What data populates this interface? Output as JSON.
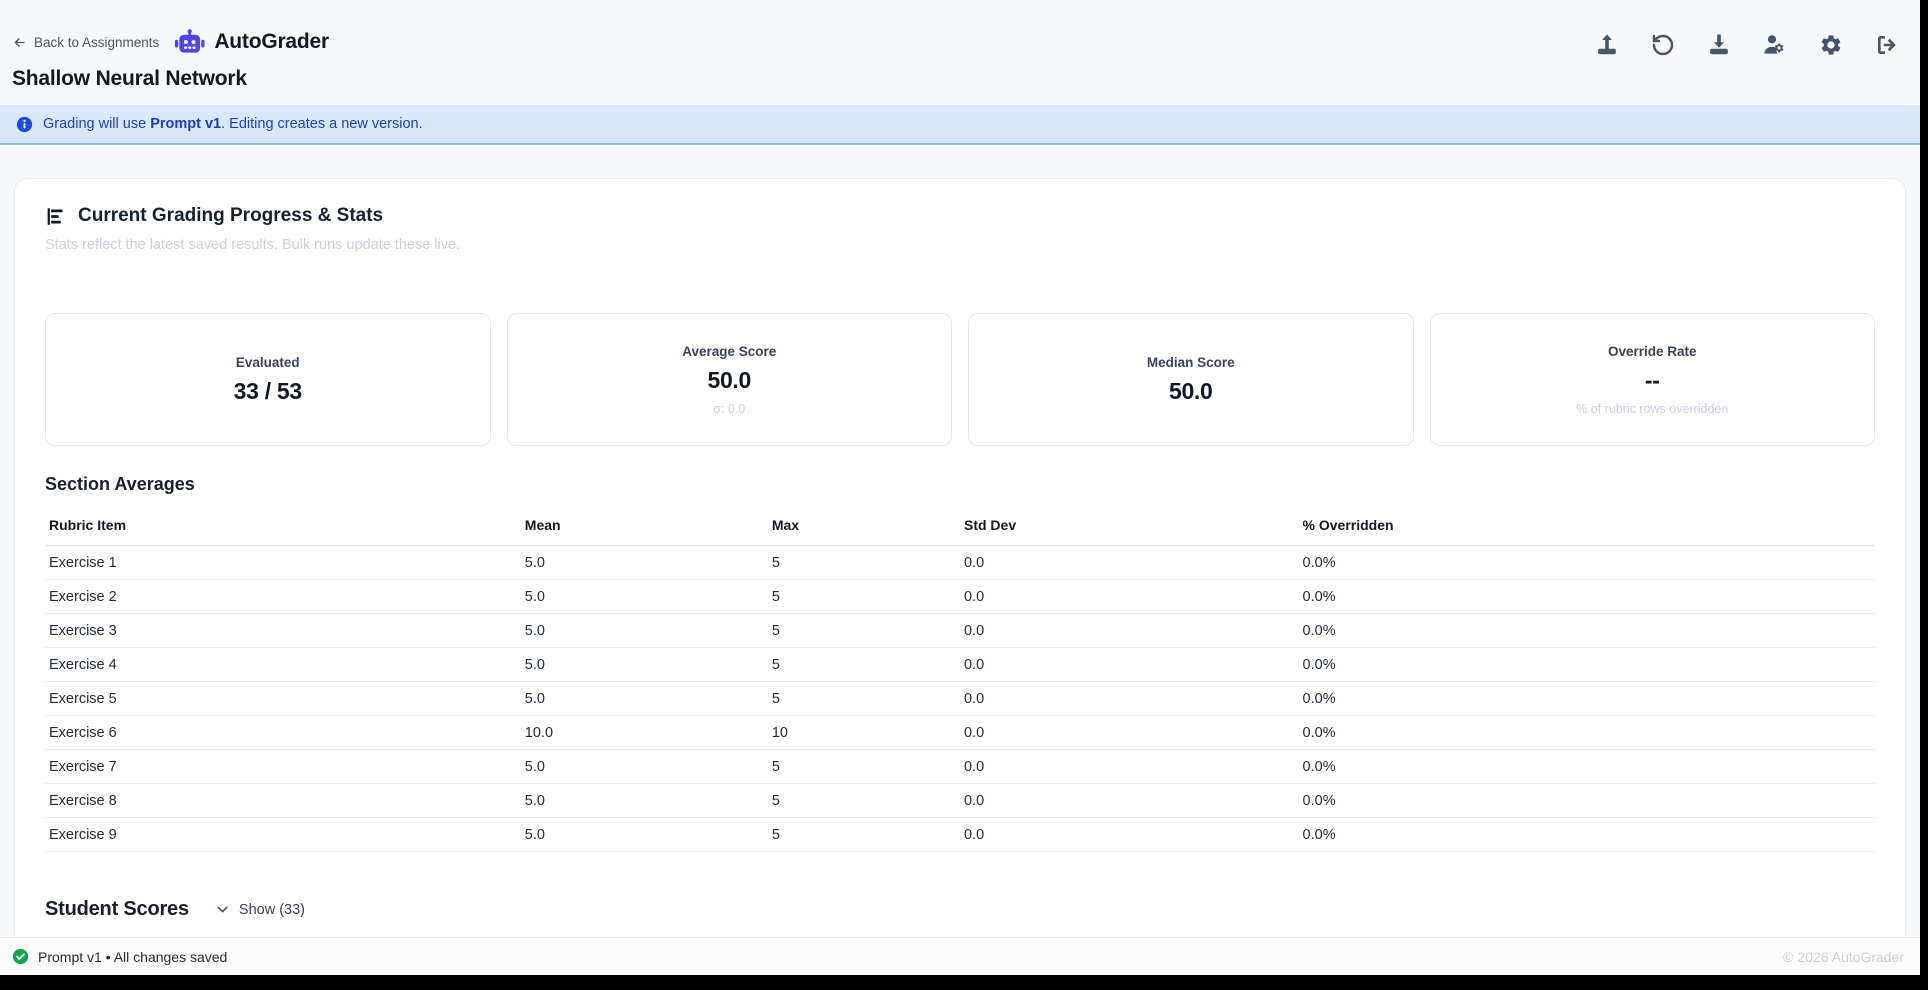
{
  "header": {
    "back_label": "Back to Assignments",
    "app_title": "AutoGrader",
    "assignment_title": "Shallow Neural Network",
    "toolbar_icons": [
      "upload-icon",
      "undo-icon",
      "download-icon",
      "user-settings-icon",
      "settings-icon",
      "logout-icon"
    ]
  },
  "banner": {
    "prefix": "Grading will use ",
    "version": "Prompt v1",
    "suffix": ". Editing creates a new version."
  },
  "stats": {
    "title": "Current Grading Progress & Stats",
    "subtitle": "Stats reflect the latest saved results. Bulk runs update these live.",
    "cards": [
      {
        "label": "Evaluated",
        "value": "33 / 53",
        "sub": ""
      },
      {
        "label": "Average Score",
        "value": "50.0",
        "sub": "σ: 0.0"
      },
      {
        "label": "Median Score",
        "value": "50.0",
        "sub": ""
      },
      {
        "label": "Override Rate",
        "value": "--",
        "sub": "% of rubric rows overridden"
      }
    ],
    "section_averages": {
      "title": "Section Averages",
      "columns": [
        "Rubric Item",
        "Mean",
        "Max",
        "Std Dev",
        "% Overridden"
      ],
      "rows": [
        [
          "Exercise 1",
          "5.0",
          "5",
          "0.0",
          "0.0%"
        ],
        [
          "Exercise 2",
          "5.0",
          "5",
          "0.0",
          "0.0%"
        ],
        [
          "Exercise 3",
          "5.0",
          "5",
          "0.0",
          "0.0%"
        ],
        [
          "Exercise 4",
          "5.0",
          "5",
          "0.0",
          "0.0%"
        ],
        [
          "Exercise 5",
          "5.0",
          "5",
          "0.0",
          "0.0%"
        ],
        [
          "Exercise 6",
          "10.0",
          "10",
          "0.0",
          "0.0%"
        ],
        [
          "Exercise 7",
          "5.0",
          "5",
          "0.0",
          "0.0%"
        ],
        [
          "Exercise 8",
          "5.0",
          "5",
          "0.0",
          "0.0%"
        ],
        [
          "Exercise 9",
          "5.0",
          "5",
          "0.0",
          "0.0%"
        ]
      ]
    },
    "student_scores": {
      "title": "Student Scores",
      "toggle_label": "Show (33)"
    }
  },
  "footer": {
    "status": "Prompt v1 • All changes saved",
    "copyright": "© 2026 AutoGrader"
  },
  "colors": {
    "accent_indigo": "#4f46e5",
    "banner_bg": "#d9e7f9",
    "banner_text": "#1e40af",
    "success_green": "#16a34a",
    "page_bg": "#f7f8fa"
  }
}
